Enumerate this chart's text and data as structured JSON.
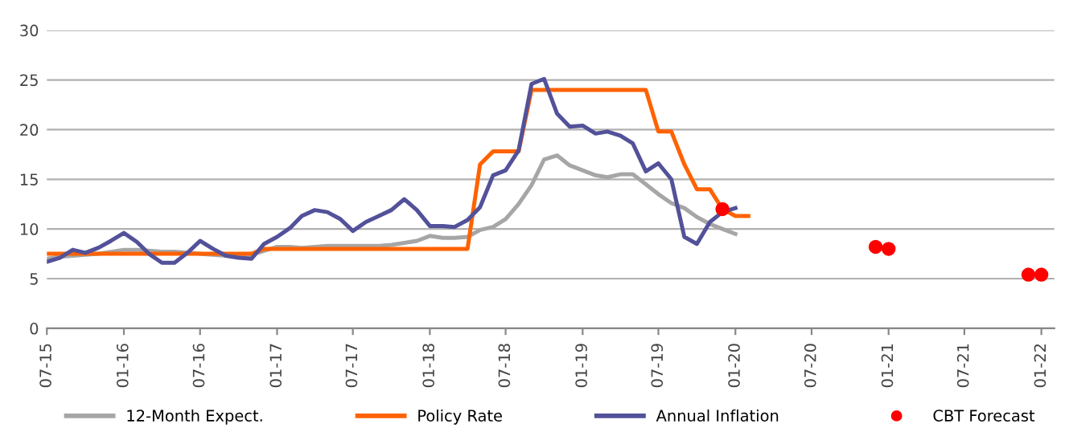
{
  "chart_data": {
    "type": "line",
    "x": [
      "2015-07",
      "2015-08",
      "2015-09",
      "2015-10",
      "2015-11",
      "2015-12",
      "2016-01",
      "2016-02",
      "2016-03",
      "2016-04",
      "2016-05",
      "2016-06",
      "2016-07",
      "2016-08",
      "2016-09",
      "2016-10",
      "2016-11",
      "2016-12",
      "2017-01",
      "2017-02",
      "2017-03",
      "2017-04",
      "2017-05",
      "2017-06",
      "2017-07",
      "2017-08",
      "2017-09",
      "2017-10",
      "2017-11",
      "2017-12",
      "2018-01",
      "2018-02",
      "2018-03",
      "2018-04",
      "2018-05",
      "2018-06",
      "2018-07",
      "2018-08",
      "2018-09",
      "2018-10",
      "2018-11",
      "2018-12",
      "2019-01",
      "2019-02",
      "2019-03",
      "2019-04",
      "2019-05",
      "2019-06",
      "2019-07",
      "2019-08",
      "2019-09",
      "2019-10",
      "2019-11",
      "2019-12",
      "2020-01"
    ],
    "series": [
      {
        "name": "12-Month Expect.",
        "color": "#a6a6a6",
        "values": [
          7.0,
          7.2,
          7.3,
          7.4,
          7.5,
          7.7,
          7.9,
          7.9,
          7.8,
          7.7,
          7.7,
          7.6,
          7.5,
          7.4,
          7.3,
          7.3,
          7.4,
          7.8,
          8.2,
          8.2,
          8.1,
          8.2,
          8.3,
          8.3,
          8.3,
          8.3,
          8.3,
          8.4,
          8.6,
          8.8,
          9.3,
          9.1,
          9.1,
          9.2,
          9.9,
          10.2,
          11.0,
          12.5,
          14.4,
          17.0,
          17.4,
          16.4,
          15.9,
          15.4,
          15.2,
          15.5,
          15.5,
          14.5,
          13.5,
          12.6,
          12.1,
          11.2,
          10.5,
          10.0,
          9.5
        ]
      },
      {
        "name": "Policy Rate",
        "color": "#ff6200",
        "x": [
          "2015-07",
          "2015-08",
          "2015-09",
          "2015-10",
          "2015-11",
          "2015-12",
          "2016-01",
          "2016-02",
          "2016-03",
          "2016-04",
          "2016-05",
          "2016-06",
          "2016-07",
          "2016-08",
          "2016-09",
          "2016-10",
          "2016-11",
          "2016-12",
          "2017-01",
          "2017-02",
          "2017-03",
          "2017-04",
          "2017-05",
          "2017-06",
          "2017-07",
          "2017-08",
          "2017-09",
          "2017-10",
          "2017-11",
          "2017-12",
          "2018-01",
          "2018-02",
          "2018-03",
          "2018-04",
          "2018-05",
          "2018-06",
          "2018-07",
          "2018-08",
          "2018-09",
          "2018-10",
          "2018-11",
          "2018-12",
          "2019-01",
          "2019-02",
          "2019-03",
          "2019-04",
          "2019-05",
          "2019-06",
          "2019-07",
          "2019-08",
          "2019-09",
          "2019-10",
          "2019-11",
          "2019-12",
          "2020-01",
          "2020-02"
        ],
        "values": [
          7.5,
          7.5,
          7.5,
          7.5,
          7.5,
          7.5,
          7.5,
          7.5,
          7.5,
          7.5,
          7.5,
          7.5,
          7.5,
          7.5,
          7.5,
          7.5,
          7.5,
          8.0,
          8.0,
          8.0,
          8.0,
          8.0,
          8.0,
          8.0,
          8.0,
          8.0,
          8.0,
          8.0,
          8.0,
          8.0,
          8.0,
          8.0,
          8.0,
          8.0,
          16.5,
          17.8,
          17.8,
          17.8,
          24.0,
          24.0,
          24.0,
          24.0,
          24.0,
          24.0,
          24.0,
          24.0,
          24.0,
          24.0,
          19.8,
          19.8,
          16.5,
          14.0,
          14.0,
          12.0,
          11.3,
          11.3
        ]
      },
      {
        "name": "Annual Inflation",
        "color": "#525199",
        "values": [
          6.7,
          7.1,
          7.9,
          7.6,
          8.1,
          8.8,
          9.6,
          8.7,
          7.5,
          6.6,
          6.6,
          7.6,
          8.8,
          8.0,
          7.3,
          7.1,
          7.0,
          8.5,
          9.2,
          10.1,
          11.3,
          11.9,
          11.7,
          11.0,
          9.8,
          10.7,
          11.3,
          11.9,
          13.0,
          11.9,
          10.3,
          10.3,
          10.2,
          10.9,
          12.2,
          15.4,
          15.9,
          17.9,
          24.6,
          25.1,
          21.6,
          20.3,
          20.4,
          19.6,
          19.8,
          19.4,
          18.6,
          15.8,
          16.6,
          15.0,
          9.2,
          8.5,
          10.7,
          11.7,
          12.1
        ]
      },
      {
        "name": "CBT Forecast",
        "type": "scatter",
        "color": "#ff0000",
        "x": [
          "2019-12",
          "2020-12",
          "2021-01",
          "2021-12",
          "2022-01"
        ],
        "values": [
          12.0,
          8.2,
          8.0,
          5.4,
          5.4
        ]
      }
    ],
    "xlim": [
      "2015-07",
      "2022-02"
    ],
    "xticks": [
      {
        "value": "2015-07",
        "label": "07-15"
      },
      {
        "value": "2016-01",
        "label": "01-16"
      },
      {
        "value": "2016-07",
        "label": "07-16"
      },
      {
        "value": "2017-01",
        "label": "01-17"
      },
      {
        "value": "2017-07",
        "label": "07-17"
      },
      {
        "value": "2018-01",
        "label": "01-18"
      },
      {
        "value": "2018-07",
        "label": "07-18"
      },
      {
        "value": "2019-01",
        "label": "01-19"
      },
      {
        "value": "2019-07",
        "label": "07-19"
      },
      {
        "value": "2020-01",
        "label": "01-20"
      },
      {
        "value": "2020-07",
        "label": "07-20"
      },
      {
        "value": "2021-01",
        "label": "01-21"
      },
      {
        "value": "2021-07",
        "label": "07-21"
      },
      {
        "value": "2022-01",
        "label": "01-22"
      }
    ],
    "ylim": [
      0,
      30
    ],
    "yticks": [
      0,
      5,
      10,
      15,
      20,
      25,
      30
    ],
    "grid": "y",
    "legend": "bottom"
  }
}
